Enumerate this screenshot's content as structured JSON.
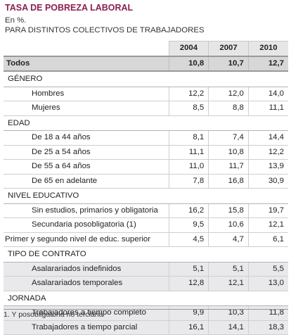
{
  "title": "TASA DE POBREZA LABORAL",
  "subtitle_line1": "En %.",
  "subtitle_line2": "PARA DISTINTOS COLECTIVOS DE TRABAJADORES",
  "note": "1. Y posobligatoria no terciaria",
  "chart_data": {
    "type": "table",
    "title": "TASA DE POBREZA LABORAL",
    "columns": [
      "2004",
      "2007",
      "2010"
    ],
    "total": {
      "label": "Todos",
      "values": [
        "10,8",
        "10,7",
        "12,7"
      ]
    },
    "groups": [
      {
        "name": "GÉNERO",
        "rows": [
          {
            "label": "Hombres",
            "values": [
              "12,2",
              "12,0",
              "14,0"
            ]
          },
          {
            "label": "Mujeres",
            "values": [
              "8,5",
              "8,8",
              "11,1"
            ]
          }
        ]
      },
      {
        "name": "EDAD",
        "rows": [
          {
            "label": "De 18 a 44 años",
            "values": [
              "8,1",
              "7,4",
              "14,4"
            ]
          },
          {
            "label": "De 25 a 54 años",
            "values": [
              "11,1",
              "10,8",
              "12,2"
            ]
          },
          {
            "label": "De 55 a 64 años",
            "values": [
              "11,0",
              "11,7",
              "13,9"
            ]
          },
          {
            "label": "De 65 en adelante",
            "values": [
              "7,8",
              "16,8",
              "30,9"
            ]
          }
        ]
      },
      {
        "name": "NIVEL EDUCATIVO",
        "rows": [
          {
            "label": "Sin estudios, primarios y  obligatoria",
            "values": [
              "16,2",
              "15,8",
              "19,7"
            ]
          },
          {
            "label": "Secundaria posobligatoria (1)",
            "values": [
              "9,5",
              "10,6",
              "12,1"
            ]
          },
          {
            "label": "Primer y segundo nivel de educ. superior",
            "values": [
              "4,5",
              "4,7",
              "6,1"
            ]
          }
        ]
      },
      {
        "name": "TIPO DE CONTRATO",
        "rows": [
          {
            "label": "Asalarariados indefinidos",
            "values": [
              "5,1",
              "5,1",
              "5,5"
            ]
          },
          {
            "label": "Asalarariados temporales",
            "values": [
              "12,8",
              "12,1",
              "13,0"
            ]
          }
        ]
      },
      {
        "name": "JORNADA",
        "rows": [
          {
            "label": "Trabajadores a tiempo completo",
            "values": [
              "9,9",
              "10,3",
              "11,8"
            ]
          },
          {
            "label": "Trabajadores a tiempo parcial",
            "values": [
              "16,1",
              "14,1",
              "18,3"
            ]
          }
        ]
      }
    ]
  }
}
